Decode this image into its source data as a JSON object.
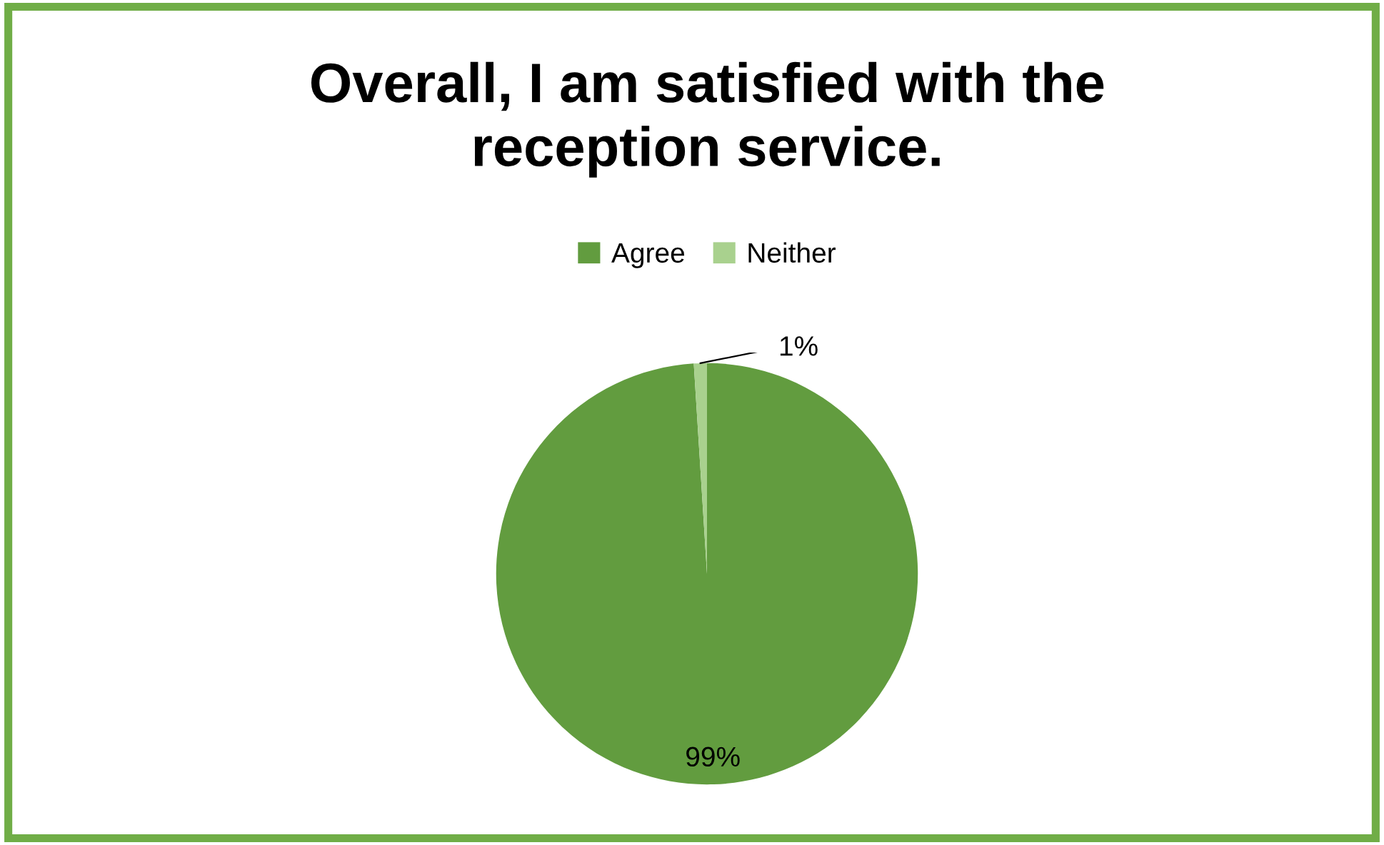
{
  "chart_data": {
    "type": "pie",
    "title": "Overall, I am satisfied with the\nreception service.",
    "categories": [
      "Agree",
      "Neither"
    ],
    "values": [
      99,
      1
    ],
    "colors": [
      "#629c3f",
      "#a9d18e"
    ],
    "value_labels": [
      "99%",
      "1%"
    ],
    "legend": "top"
  }
}
